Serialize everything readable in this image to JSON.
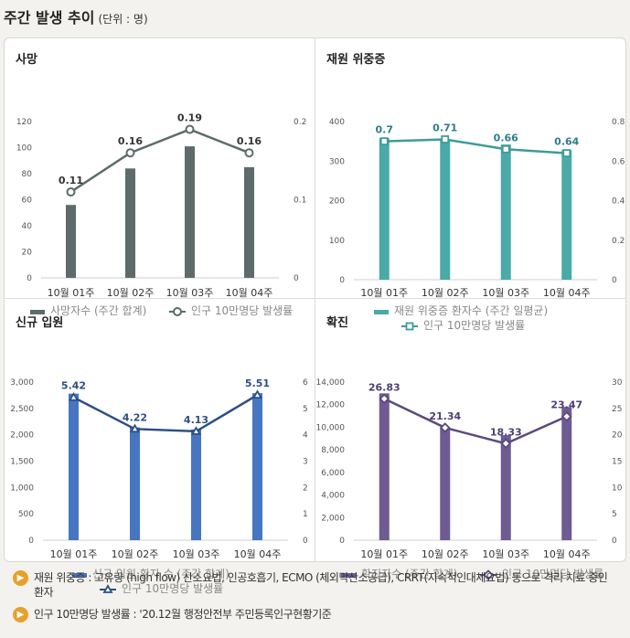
{
  "header": {
    "title": "주간 발생 추이",
    "unit": "(단위 : 명)"
  },
  "chart_data": [
    {
      "id": "deaths",
      "type": "bar",
      "title": "사망",
      "categories": [
        "10월 01주",
        "10월 02주",
        "10월 03주",
        "10월 04주"
      ],
      "ylim": [
        0,
        120
      ],
      "yticks": [
        "0",
        "20",
        "40",
        "60",
        "80",
        "100",
        "120"
      ],
      "y2lim": [
        0,
        0.2
      ],
      "y2ticks": [
        "0",
        "0.1",
        "0.2"
      ],
      "series": [
        {
          "name": "사망자수 (주간 합계)",
          "kind": "bar",
          "axis": "left",
          "values": [
            56,
            84,
            101,
            85
          ]
        },
        {
          "name": "인구 10만명당 발생률",
          "kind": "line",
          "axis": "right",
          "values": [
            0.11,
            0.16,
            0.19,
            0.16
          ],
          "labels": [
            "0.11",
            "0.16",
            "0.19",
            "0.16"
          ]
        }
      ],
      "bar_color": "#5e6b6b",
      "line_color": "#5e6b6b",
      "marker": "circle",
      "label_color": "#333333",
      "legend_layout": "row"
    },
    {
      "id": "severe",
      "type": "bar",
      "title": "재원 위중증",
      "categories": [
        "10월 01주",
        "10월 02주",
        "10월 03주",
        "10월 04주"
      ],
      "ylim": [
        0,
        400
      ],
      "yticks": [
        "0",
        "100",
        "200",
        "300",
        "400"
      ],
      "y2lim": [
        0,
        0.8
      ],
      "y2ticks": [
        "0",
        "0.2",
        "0.4",
        "0.6",
        "0.8"
      ],
      "series": [
        {
          "name": "재원 위중증 환자수 (주간 일평균)",
          "kind": "bar",
          "axis": "left",
          "values": [
            358,
            356,
            342,
            328
          ]
        },
        {
          "name": "인구 10만명당 발생률",
          "kind": "line",
          "axis": "right",
          "values": [
            0.7,
            0.71,
            0.66,
            0.64
          ],
          "labels": [
            "0.7",
            "0.71",
            "0.66",
            "0.64"
          ]
        }
      ],
      "bar_color": "#4aaaa8",
      "line_color": "#3e9c9a",
      "marker": "square",
      "label_color": "#2e7d8e",
      "legend_layout": "stack"
    },
    {
      "id": "admissions",
      "type": "bar",
      "title": "신규 입원",
      "categories": [
        "10월 01주",
        "10월 02주",
        "10월 03주",
        "10월 04주"
      ],
      "ylim": [
        0,
        3000
      ],
      "yticks": [
        "0",
        "500",
        "1,000",
        "1,500",
        "2,000",
        "2,500",
        "3,000"
      ],
      "y2lim": [
        0,
        6
      ],
      "y2ticks": [
        "0",
        "1",
        "2",
        "3",
        "4",
        "5",
        "6"
      ],
      "series": [
        {
          "name": "신규 입원 환자 수 (주간 합계)",
          "kind": "bar",
          "axis": "left",
          "values": [
            2780,
            2140,
            2100,
            2790
          ]
        },
        {
          "name": "인구 10만명당 발생률",
          "kind": "line",
          "axis": "right",
          "values": [
            5.42,
            4.22,
            4.13,
            5.51
          ],
          "labels": [
            "5.42",
            "4.22",
            "4.13",
            "5.51"
          ]
        }
      ],
      "bar_color": "#4676c2",
      "line_color": "#2d4f86",
      "marker": "triangle",
      "label_color": "#2d4f86",
      "legend_layout": "stack"
    },
    {
      "id": "confirmed",
      "type": "bar",
      "title": "확진",
      "categories": [
        "10월 01주",
        "10월 02주",
        "10월 03주",
        "10월 04주"
      ],
      "ylim": [
        0,
        14000
      ],
      "yticks": [
        "0",
        "2,000",
        "4,000",
        "6,000",
        "8,000",
        "10,000",
        "12,000",
        "14,000"
      ],
      "y2lim": [
        0,
        30
      ],
      "y2ticks": [
        "0",
        "5",
        "10",
        "15",
        "20",
        "25",
        "30"
      ],
      "series": [
        {
          "name": "확진자수 (주간 합계)",
          "kind": "bar",
          "axis": "left",
          "values": [
            13000,
            10000,
            9300,
            11800
          ]
        },
        {
          "name": "인구 10만명당 발생률",
          "kind": "line",
          "axis": "right",
          "values": [
            26.83,
            21.34,
            18.33,
            23.47
          ],
          "labels": [
            "26.83",
            "21.34",
            "18.33",
            "23.47"
          ]
        }
      ],
      "bar_color": "#6e5b92",
      "line_color": "#5b4a7e",
      "marker": "diamond",
      "label_color": "#4f3f72",
      "legend_layout": "row"
    }
  ],
  "notes": [
    {
      "icon": "speaker-icon",
      "text": "재원 위중증 : 고유량 (high flow) 산소요법, 인공호흡기, ECMO (체외막산소공급), CRRT(지속적인대체요법) 등으로 격리 치료 중인 환자"
    },
    {
      "icon": "speaker-icon",
      "text": "인구 10만명당 발생률 : '20.12월 행정안전부 주민등록인구현황기준"
    }
  ]
}
